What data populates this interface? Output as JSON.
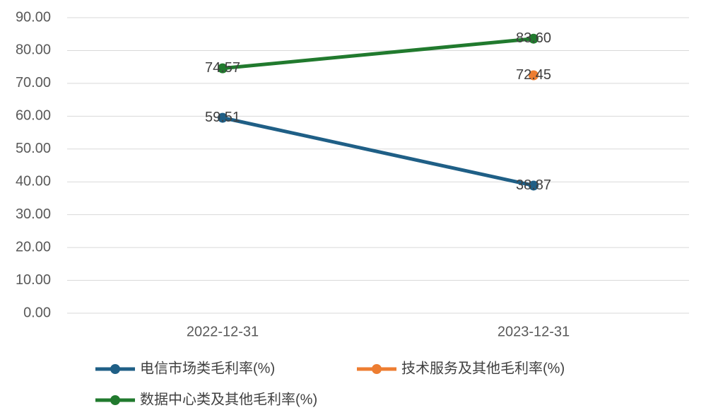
{
  "chart_data": {
    "type": "line",
    "categories": [
      "2022-12-31",
      "2023-12-31"
    ],
    "series": [
      {
        "name": "电信市场类毛利率(%)",
        "color": "#1f5f86",
        "values": [
          59.51,
          38.87
        ]
      },
      {
        "name": "技术服务及其他毛利率(%)",
        "color": "#ed7d31",
        "values": [
          null,
          72.45
        ]
      },
      {
        "name": "数据中心类及其他毛利率(%)",
        "color": "#217a2e",
        "values": [
          74.57,
          83.6
        ],
        "value_labels": [
          "74.57",
          "83.60"
        ]
      }
    ],
    "ylim": [
      0,
      90
    ],
    "yticks": [
      {
        "value": 0,
        "label": "0.00"
      },
      {
        "value": 10,
        "label": "10.00"
      },
      {
        "value": 20,
        "label": "20.00"
      },
      {
        "value": 30,
        "label": "30.00"
      },
      {
        "value": 40,
        "label": "40.00"
      },
      {
        "value": 50,
        "label": "50.00"
      },
      {
        "value": 60,
        "label": "60.00"
      },
      {
        "value": 70,
        "label": "70.00"
      },
      {
        "value": 80,
        "label": "80.00"
      },
      {
        "value": 90,
        "label": "90.00"
      }
    ],
    "grid": true
  }
}
